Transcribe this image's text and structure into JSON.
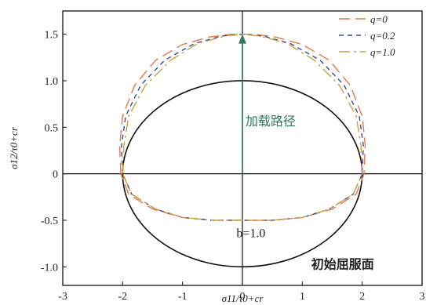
{
  "chart_data": {
    "type": "line",
    "xlabel": "σ11/τ0+cr",
    "ylabel": "σ12/τ0+cr",
    "xlim": [
      -3,
      3
    ],
    "ylim": [
      -1.2,
      1.75
    ],
    "x_ticks": [
      "-3",
      "-2",
      "-1",
      "0",
      "1",
      "2",
      "3"
    ],
    "y_ticks": [
      "-1.0",
      "-0.5",
      "0",
      "0.5",
      "1.0",
      "1.5"
    ],
    "x_tick_values": [
      -3,
      -2,
      -1,
      0,
      1,
      2,
      3
    ],
    "y_tick_values": [
      -1.0,
      -0.5,
      0,
      0.5,
      1.0,
      1.5
    ],
    "legend_position": "top-right",
    "legend": [
      {
        "label": "q=0",
        "color": "#e07a4a",
        "dash": "long-dash"
      },
      {
        "label": "q=0.2",
        "color": "#3b4a9a",
        "dash": "short-dash"
      },
      {
        "label": "q=1.0",
        "color": "#c8a040",
        "dash": "dash-dot"
      }
    ],
    "initial_yield_surface": {
      "label": "初始屈服面",
      "color": "#111111",
      "center": [
        0,
        0
      ],
      "semi_axis_x": 2.0,
      "semi_axis_y": 1.0
    },
    "annotations": {
      "loading_path": "加载路径",
      "b_value": "b=1.0"
    },
    "loading_path_arrow": {
      "from": [
        0,
        0
      ],
      "to": [
        0,
        1.5
      ]
    },
    "series": [
      {
        "name": "q=0",
        "color": "#e07a4a",
        "x": [
          -2.03,
          -2.05,
          -2.0,
          -1.8,
          -1.45,
          -1.0,
          -0.55,
          -0.2,
          0,
          0.2,
          0.55,
          1.0,
          1.45,
          1.8,
          2.0,
          2.05,
          2.03,
          1.9,
          1.5,
          1.0,
          0.5,
          0,
          -0.5,
          -1.0,
          -1.5,
          -1.9,
          -2.03
        ],
        "y": [
          0,
          0.3,
          0.62,
          0.95,
          1.22,
          1.39,
          1.47,
          1.5,
          1.5,
          1.5,
          1.47,
          1.39,
          1.22,
          0.95,
          0.62,
          0.3,
          0,
          -0.22,
          -0.38,
          -0.47,
          -0.5,
          -0.5,
          -0.5,
          -0.47,
          -0.38,
          -0.22,
          0
        ]
      },
      {
        "name": "q=0.2",
        "color": "#3b4a9a",
        "x": [
          -2.0,
          -2.02,
          -1.95,
          -1.7,
          -1.3,
          -0.8,
          -0.35,
          0,
          0.35,
          0.8,
          1.3,
          1.7,
          1.95,
          2.02,
          2.0,
          1.85,
          1.45,
          1.0,
          0.5,
          0,
          -0.5,
          -1.0,
          -1.45,
          -1.85,
          -2.0
        ],
        "y": [
          0,
          0.3,
          0.62,
          0.95,
          1.22,
          1.4,
          1.48,
          1.5,
          1.48,
          1.4,
          1.22,
          0.95,
          0.62,
          0.3,
          0,
          -0.22,
          -0.38,
          -0.47,
          -0.5,
          -0.5,
          -0.5,
          -0.47,
          -0.38,
          -0.22,
          0
        ]
      },
      {
        "name": "q=1.0",
        "color": "#c8a040",
        "x": [
          -2.0,
          -1.98,
          -1.9,
          -1.62,
          -1.2,
          -0.75,
          -0.3,
          0,
          0.3,
          0.75,
          1.2,
          1.62,
          1.9,
          1.98,
          2.0,
          1.85,
          1.45,
          1.0,
          0.5,
          0,
          -0.5,
          -1.0,
          -1.45,
          -1.85,
          -2.0
        ],
        "y": [
          0,
          0.3,
          0.62,
          0.95,
          1.22,
          1.4,
          1.48,
          1.5,
          1.48,
          1.4,
          1.22,
          0.95,
          0.62,
          0.3,
          0,
          -0.22,
          -0.38,
          -0.47,
          -0.5,
          -0.5,
          -0.5,
          -0.47,
          -0.38,
          -0.22,
          0
        ]
      }
    ]
  }
}
